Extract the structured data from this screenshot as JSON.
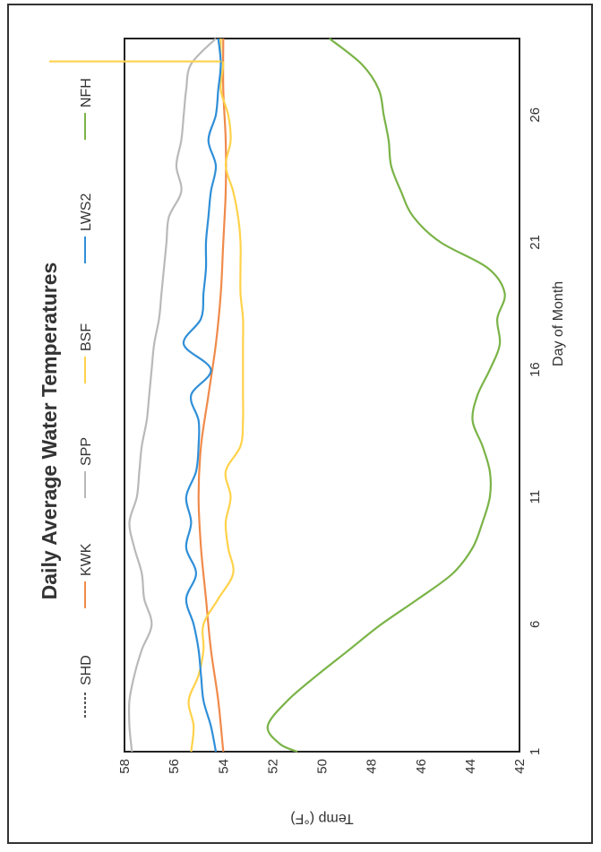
{
  "chart_data": {
    "type": "line",
    "title": "Daily Average Water Temperatures",
    "xlabel": "Day of Month",
    "ylabel": "Temp (°F)",
    "xlim": [
      1,
      29
    ],
    "ylim": [
      42,
      58
    ],
    "x_ticks": [
      1,
      6,
      11,
      16,
      21,
      26
    ],
    "y_ticks": [
      58,
      56,
      54,
      52,
      50,
      48,
      46,
      44,
      42
    ],
    "legend_position": "top",
    "series": [
      {
        "name": "SHD",
        "color": "#555555",
        "dash": true,
        "x": [],
        "values": []
      },
      {
        "name": "KWK",
        "color": "#f08a4b",
        "dash": false,
        "x": [
          1,
          3,
          5,
          7,
          9,
          11,
          13,
          15,
          17,
          19,
          21,
          23,
          25,
          27,
          29
        ],
        "values": [
          54.0,
          54.2,
          54.5,
          54.7,
          54.9,
          55.0,
          54.9,
          54.6,
          54.3,
          54.1,
          54.0,
          53.9,
          53.9,
          54.0,
          54.0
        ]
      },
      {
        "name": "SPP",
        "color": "#b9b9b9",
        "dash": false,
        "x": [
          1,
          2,
          3,
          4,
          5,
          6,
          7,
          8,
          9,
          10,
          11,
          12,
          13,
          14,
          15,
          16,
          17,
          18,
          19,
          20,
          21,
          22,
          23,
          24,
          25,
          26,
          27,
          28,
          29
        ],
        "values": [
          57.7,
          57.8,
          57.8,
          57.6,
          57.3,
          56.9,
          57.2,
          57.3,
          57.6,
          57.8,
          57.5,
          57.4,
          57.3,
          57.1,
          57.0,
          56.9,
          56.8,
          56.6,
          56.5,
          56.4,
          56.3,
          56.2,
          55.7,
          55.9,
          55.7,
          55.6,
          55.5,
          55.3,
          54.3
        ]
      },
      {
        "name": "BSF",
        "color": "#ffd24a",
        "dash": false,
        "x": [
          1,
          2,
          3,
          4,
          5,
          6,
          7,
          8,
          9,
          10,
          11,
          12,
          13,
          14,
          15,
          16,
          17,
          18,
          19,
          20,
          21,
          22,
          23,
          24,
          25,
          26,
          27,
          28,
          28.1,
          29
        ],
        "values": [
          55.3,
          55.2,
          55.4,
          55.0,
          54.8,
          54.8,
          54.2,
          53.6,
          53.8,
          53.9,
          53.7,
          53.9,
          53.3,
          53.2,
          53.2,
          53.2,
          53.2,
          53.2,
          53.3,
          53.3,
          53.3,
          53.4,
          53.6,
          53.9,
          53.7,
          53.8,
          54.1,
          54.0,
          54.1,
          54.1
        ]
      },
      {
        "name": "LWS2",
        "color": "#2f8fd8",
        "dash": false,
        "x": [
          1,
          2,
          3,
          4,
          5,
          6,
          7,
          8,
          9,
          10,
          11,
          12,
          13,
          14,
          15,
          16,
          17,
          18,
          19,
          20,
          21,
          22,
          23,
          24,
          25,
          26,
          27,
          28,
          29
        ],
        "values": [
          54.3,
          54.5,
          54.8,
          54.9,
          55.0,
          55.2,
          55.5,
          55.1,
          55.5,
          55.3,
          55.5,
          55.1,
          55.0,
          55.0,
          55.3,
          54.5,
          55.6,
          54.9,
          54.8,
          54.7,
          54.7,
          54.6,
          54.5,
          54.3,
          54.6,
          54.3,
          54.2,
          54.1,
          54.2
        ]
      },
      {
        "name": "NFH",
        "color": "#7ab347",
        "dash": false,
        "x": [
          1,
          1.3,
          2,
          3,
          4,
          5,
          6,
          7,
          8,
          9,
          10,
          11,
          12,
          13,
          14,
          15,
          16,
          17,
          18,
          19,
          20,
          21,
          22,
          23,
          24,
          25,
          26,
          27,
          28,
          29
        ],
        "values": [
          51.0,
          51.7,
          52.2,
          51.4,
          50.2,
          48.9,
          47.6,
          46.1,
          44.7,
          43.9,
          43.5,
          43.2,
          43.2,
          43.5,
          43.9,
          43.7,
          43.2,
          42.8,
          42.9,
          42.6,
          43.3,
          45.2,
          46.3,
          46.8,
          47.2,
          47.3,
          47.5,
          47.7,
          48.4,
          49.7
        ]
      }
    ]
  }
}
